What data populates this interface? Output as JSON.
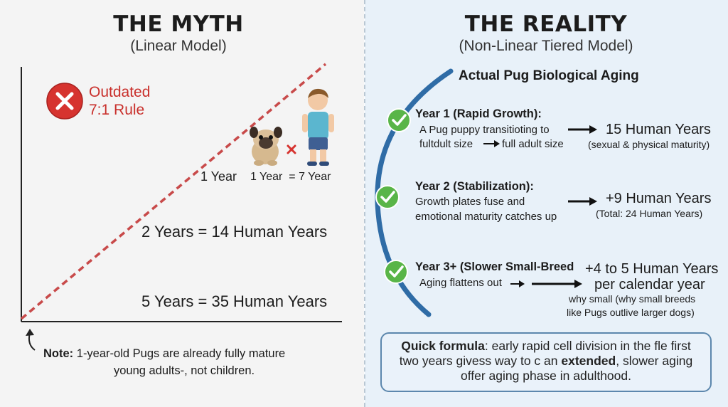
{
  "myth": {
    "title": "THE MYTH",
    "subtitle": "(Linear Model)",
    "outdated_line1": "Outdated",
    "outdated_line2": "7:1 Rule",
    "label_1year": "1 Year",
    "label_1year_7": "1 Year  = 7 Year",
    "label_2years": "2 Years = 14 Human Years",
    "label_5years": "5 Years = 35 Human Years",
    "note_bold": "Note:",
    "note_line1": "1-year-old Pugs are already fully mature",
    "note_line2": "young adults-, not children."
  },
  "reality": {
    "title": "THE REALITY",
    "subtitle": "(Non-Linear Tiered Model)",
    "curve_label": "Actual Pug Biological Aging",
    "steps": [
      {
        "heading": "Year 1 (Rapid Growth):",
        "desc1": "A Pug puppy transitioting to",
        "desc2a": "fultdult size",
        "desc2b": "full adult size",
        "result": "15 Human Years",
        "result_note": "(sexual & physical maturity)"
      },
      {
        "heading": "Year 2 (Stabilization):",
        "desc1": "Growth plates fuse and",
        "desc2": "emotional maturity catches up",
        "result": "+9 Human Years",
        "result_note": "(Total: 24 Human Years)"
      },
      {
        "heading": "Year 3+ (Slower Small-Breed",
        "desc1": "Aging flattens out",
        "result1": "+4 to 5 Human Years",
        "result2": "per calendar year",
        "result_note1": "why small (why small breeds",
        "result_note2": "like Pugs outlive larger dogs)"
      }
    ],
    "formula": {
      "label": "Quick formula",
      "part1": ": early rapid cell division in the fle first",
      "part2": "two years givess way to c an",
      "bold": "extended",
      "part3": ", slower aging",
      "line3": "offer aging phase in adulthood."
    }
  },
  "colors": {
    "red": "#c9302c",
    "dashed_line": "#c84a4a",
    "green": "#59b548",
    "blue_curve": "#2f6ca6",
    "box_border": "#5c87ad"
  }
}
